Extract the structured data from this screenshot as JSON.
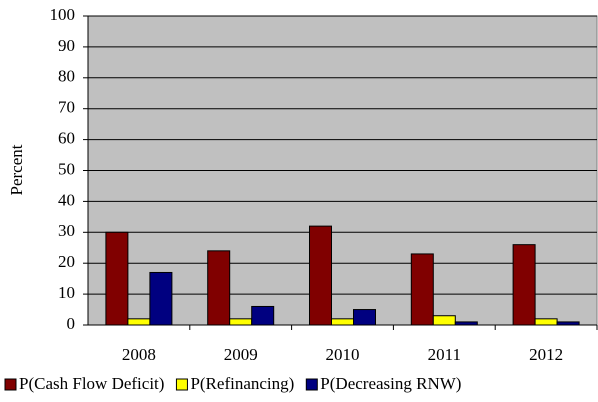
{
  "chart_data": {
    "type": "bar",
    "y_label": "Percent",
    "categories": [
      "2008",
      "2009",
      "2010",
      "2011",
      "2012"
    ],
    "series": [
      {
        "name": "P(Cash Flow Deficit)",
        "color": "#800000",
        "values": [
          30,
          24,
          32,
          23,
          26
        ]
      },
      {
        "name": "P(Refinancing)",
        "color": "#ffff00",
        "values": [
          2,
          2,
          2,
          3,
          2
        ]
      },
      {
        "name": "P(Decreasing RNW)",
        "color": "#000080",
        "values": [
          17,
          6,
          5,
          1,
          1
        ]
      }
    ],
    "ylim": [
      0,
      100
    ],
    "yticks": [
      0,
      10,
      20,
      30,
      40,
      50,
      60,
      70,
      80,
      90,
      100
    ],
    "grid": true,
    "plot_background": "#c0c0c0",
    "legend": "bottom"
  }
}
